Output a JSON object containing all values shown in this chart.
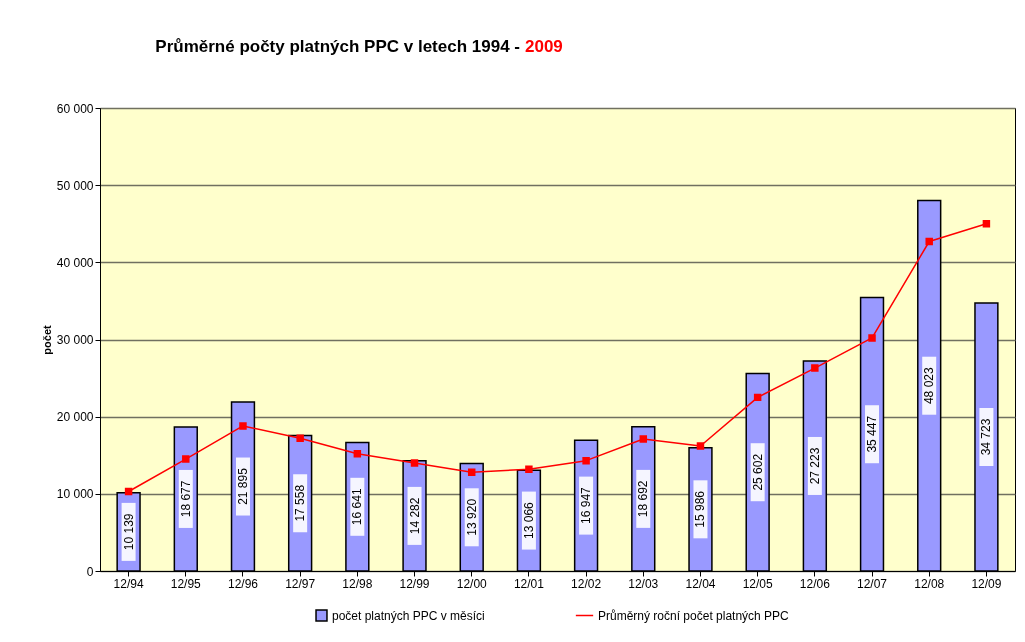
{
  "chart_data": {
    "type": "bar",
    "title": "Průměrné počty platných PPC v letech 1994 - 2009",
    "ylabel": "počet",
    "categories": [
      "12/94",
      "12/95",
      "12/96",
      "12/97",
      "12/98",
      "12/99",
      "12/00",
      "12/01",
      "12/02",
      "12/03",
      "12/04",
      "12/05",
      "12/06",
      "12/07",
      "12/08",
      "12/09"
    ],
    "series": [
      {
        "name": "počet platných PPC v měsíci",
        "color": "#9999ff",
        "values": [
          10139,
          18677,
          21895,
          17558,
          16641,
          14282,
          13920,
          13066,
          16947,
          18692,
          15986,
          25602,
          27223,
          35447,
          48023,
          34723
        ],
        "value_labels": [
          "10 139",
          "18 677",
          "21 895",
          "17 558",
          "16 641",
          "14 282",
          "13 920",
          "13 066",
          "16 947",
          "18 692",
          "15 986",
          "25 602",
          "27 223",
          "35 447",
          "48 023",
          "34 723"
        ]
      },
      {
        "name": "Průměrný roční počet platných PPC",
        "type": "line",
        "color": "#ff0000",
        "marker": "square",
        "line_style": "solid",
        "values": [
          10300,
          14500,
          18800,
          17200,
          15200,
          14000,
          12800,
          13200,
          14300,
          17100,
          16200,
          22500,
          26300,
          30200,
          42700,
          45000
        ]
      }
    ],
    "ylim": [
      0,
      60000
    ],
    "yticks": [
      {
        "value": 0,
        "label": "0"
      },
      {
        "value": 10000,
        "label": "10 000"
      },
      {
        "value": 20000,
        "label": "20 000"
      },
      {
        "value": 30000,
        "label": "30 000"
      },
      {
        "value": 40000,
        "label": "40 000"
      },
      {
        "value": 50000,
        "label": "50 000"
      },
      {
        "value": 60000,
        "label": "60 000"
      }
    ],
    "grid": "y",
    "legend": "bottom"
  }
}
